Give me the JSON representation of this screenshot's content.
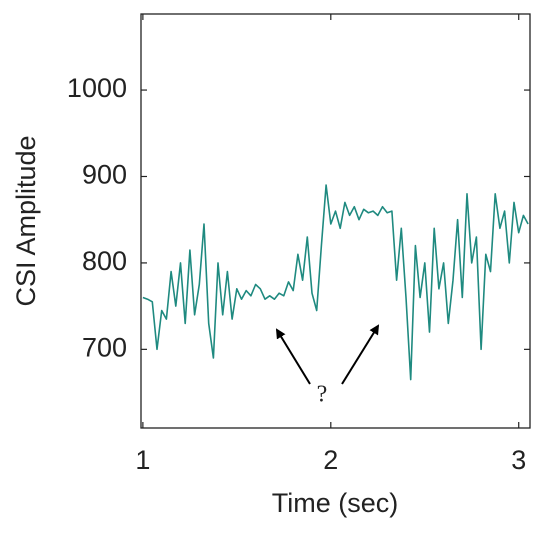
{
  "chart_data": {
    "type": "line",
    "xlabel": "Time (sec)",
    "ylabel": "CSI Amplitude",
    "annotations": [
      {
        "text": "?"
      }
    ],
    "x": [
      1.0,
      1.025,
      1.05,
      1.075,
      1.1,
      1.125,
      1.15,
      1.175,
      1.2,
      1.225,
      1.25,
      1.275,
      1.3,
      1.325,
      1.35,
      1.375,
      1.4,
      1.425,
      1.45,
      1.475,
      1.5,
      1.525,
      1.55,
      1.575,
      1.6,
      1.625,
      1.65,
      1.675,
      1.7,
      1.725,
      1.75,
      1.775,
      1.8,
      1.825,
      1.85,
      1.875,
      1.9,
      1.925,
      1.95,
      1.975,
      2.0,
      2.025,
      2.05,
      2.075,
      2.1,
      2.125,
      2.15,
      2.175,
      2.2,
      2.225,
      2.25,
      2.275,
      2.3,
      2.325,
      2.35,
      2.375,
      2.4,
      2.425,
      2.45,
      2.475,
      2.5,
      2.525,
      2.55,
      2.575,
      2.6,
      2.625,
      2.65,
      2.675,
      2.7,
      2.725,
      2.75,
      2.775,
      2.8,
      2.825,
      2.85,
      2.875,
      2.9,
      2.925,
      2.95,
      2.975,
      3.0,
      3.025,
      3.05
    ],
    "values": [
      760,
      758,
      755,
      700,
      745,
      735,
      790,
      750,
      800,
      730,
      815,
      740,
      775,
      845,
      730,
      690,
      800,
      740,
      790,
      735,
      770,
      758,
      768,
      762,
      775,
      770,
      758,
      762,
      758,
      765,
      762,
      778,
      768,
      810,
      780,
      830,
      765,
      745,
      820,
      890,
      845,
      860,
      840,
      870,
      855,
      865,
      850,
      862,
      858,
      860,
      855,
      865,
      858,
      860,
      780,
      840,
      760,
      665,
      820,
      760,
      800,
      720,
      840,
      770,
      800,
      730,
      780,
      850,
      760,
      880,
      800,
      830,
      700,
      810,
      790,
      880,
      840,
      860,
      800,
      870,
      835,
      855,
      845
    ],
    "color": "#1f8a80",
    "xlim": [
      0.99,
      3.06
    ],
    "xticks": [
      1,
      2,
      3
    ],
    "ylim": [
      609,
      1088
    ],
    "yticks": [
      700,
      800,
      900,
      1000
    ]
  }
}
